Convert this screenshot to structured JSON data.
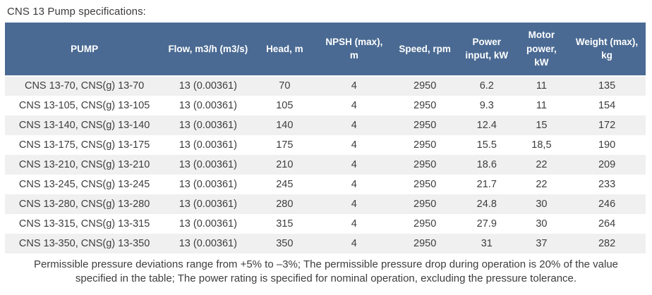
{
  "page": {
    "title": "CNS 13 Pump specifications:"
  },
  "table": {
    "columns": [
      {
        "id": "pump",
        "label": "PUMP"
      },
      {
        "id": "flow",
        "label": "Flow, m3/h (m3/s)"
      },
      {
        "id": "head",
        "label": "Head, m"
      },
      {
        "id": "npsh",
        "label": "NPSH (max), m"
      },
      {
        "id": "speed",
        "label": "Speed, rpm"
      },
      {
        "id": "power-input",
        "label": "Power input, kW"
      },
      {
        "id": "motor-power",
        "label": "Motor power, kW"
      },
      {
        "id": "weight",
        "label": "Weight (max), kg"
      }
    ],
    "rows": [
      [
        "CNS 13-70, CNS(g) 13-70",
        "13 (0.00361)",
        "70",
        "4",
        "2950",
        "6.2",
        "11",
        "135"
      ],
      [
        "CNS 13-105, CNS(g) 13-105",
        "13 (0.00361)",
        "105",
        "4",
        "2950",
        "9.3",
        "11",
        "154"
      ],
      [
        "CNS 13-140, CNS(g) 13-140",
        "13 (0.00361)",
        "140",
        "4",
        "2950",
        "12.4",
        "15",
        "172"
      ],
      [
        "CNS 13-175, CNS(g) 13-175",
        "13 (0.00361)",
        "175",
        "4",
        "2950",
        "15.5",
        "18,5",
        "190"
      ],
      [
        "CNS 13-210, CNS(g) 13-210",
        "13 (0.00361)",
        "210",
        "4",
        "2950",
        "18.6",
        "22",
        "209"
      ],
      [
        "CNS 13-245, CNS(g) 13-245",
        "13 (0.00361)",
        "245",
        "4",
        "2950",
        "21.7",
        "22",
        "233"
      ],
      [
        "CNS 13-280, CNS(g) 13-280",
        "13 (0.00361)",
        "280",
        "4",
        "2950",
        "24.8",
        "30",
        "246"
      ],
      [
        "CNS 13-315, CNS(g) 13-315",
        "13 (0.00361)",
        "315",
        "4",
        "2950",
        "27.9",
        "30",
        "264"
      ],
      [
        "CNS 13-350, CNS(g) 13-350",
        "13 (0.00361)",
        "350",
        "4",
        "2950",
        "31",
        "37",
        "282"
      ]
    ]
  },
  "footer": {
    "lines": [
      "Permissible pressure deviations range from +5% to –3%; The permissible pressure drop during operation is 20% of the value",
      "specified in the table; The power rating is specified for nominal operation, excluding the pressure tolerance."
    ]
  },
  "colors": {
    "header_bg": "#4a6a93",
    "header_text": "#ffffff",
    "row_stripe": "#f0f0f1",
    "body_text": "#3d3d3d"
  }
}
